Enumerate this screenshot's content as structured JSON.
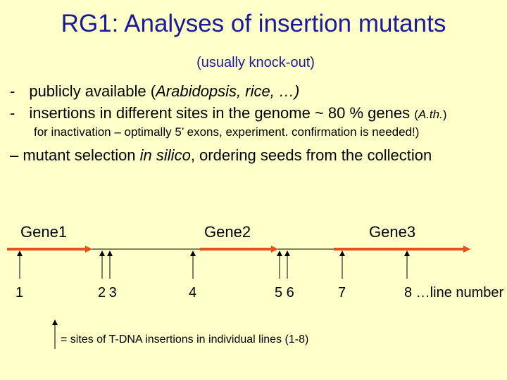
{
  "slide": {
    "title": "RG1: Analyses of insertion mutants",
    "subtitle": "(usually knock-out)",
    "bullet1": {
      "dash": "-",
      "pre": "publicly available (",
      "italic": "Arabidopsis, rice, …)",
      "post": ""
    },
    "bullet2": {
      "dash": "-",
      "pre": "insertions in different sites in the genome ~ 80 % genes ",
      "small_pre": "(",
      "small_italic": "A.th.",
      "small_post": ")"
    },
    "note": "for inactivation – optimally 5’ exons, experiment. confirmation is needed!)",
    "bullet3": {
      "pre": "– mutant selection ",
      "italic": "in silico",
      "post": ", ordering seeds from the collection"
    }
  },
  "diagram": {
    "genes": [
      "Gene1",
      "Gene2",
      "Gene3"
    ],
    "line_labels": [
      "1",
      "2 3",
      "4",
      "5 6",
      "7",
      "8 …line number"
    ],
    "legend": "= sites of T-DNA insertions in individual lines (1-8)",
    "colors": {
      "gene_arrow": "#e8501e",
      "chromosome": "#000000",
      "title": "#1a1a99"
    }
  }
}
